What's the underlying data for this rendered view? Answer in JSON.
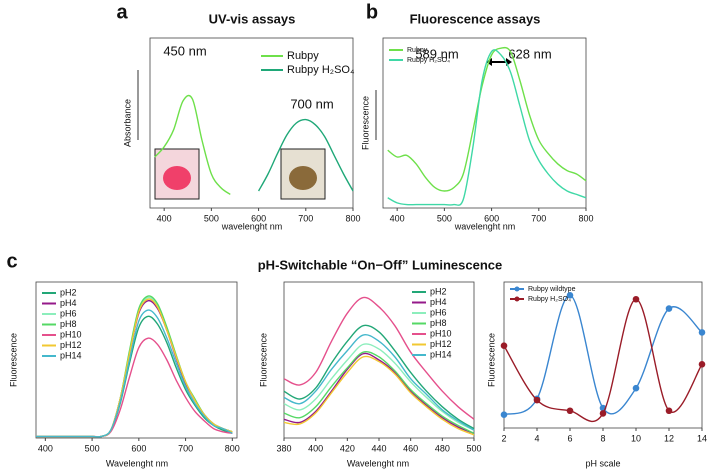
{
  "panels": [
    {
      "label": "a"
    },
    {
      "label": "b"
    },
    {
      "label": "c",
      "title": "pH-Switchable “On−Off” Luminescence"
    }
  ],
  "chart_data": [
    {
      "type": "line",
      "title": "UV-vis assays",
      "x_label": "wavelenght nm",
      "y_label": "Absorbance",
      "xlim": [
        370,
        800
      ],
      "ylim": [
        0,
        1
      ],
      "xticks": [
        400,
        500,
        600,
        700,
        800
      ],
      "legend": "top-right",
      "annotations": [
        "450 nm",
        "700 nm"
      ],
      "x": [
        380,
        400,
        420,
        440,
        460,
        480,
        500,
        520,
        540,
        560,
        580,
        600,
        620,
        640,
        660,
        680,
        700,
        720,
        740,
        760,
        780,
        800
      ],
      "series": [
        {
          "name": "Rubpy",
          "color": "#6ee04a",
          "values": [
            0.3,
            0.36,
            0.46,
            0.63,
            0.64,
            0.4,
            0.2,
            0.12,
            0.08,
            null,
            null,
            null,
            null,
            null,
            null,
            null,
            null,
            null,
            null,
            null,
            null,
            null
          ]
        },
        {
          "name": "Rubpy H₂SO₄",
          "color": "#1fa878",
          "values": [
            null,
            null,
            null,
            null,
            null,
            null,
            null,
            null,
            null,
            null,
            null,
            0.1,
            0.2,
            0.32,
            0.43,
            0.5,
            0.52,
            0.49,
            0.42,
            0.31,
            0.2,
            0.1
          ]
        }
      ]
    },
    {
      "type": "line",
      "title": "Fluorescence assays",
      "x_label": "wavelenght nm",
      "y_label": "Fluorescence",
      "xlim": [
        370,
        800
      ],
      "ylim": [
        0,
        1
      ],
      "xticks": [
        400,
        500,
        600,
        700,
        800
      ],
      "legend": "top-left",
      "annotations": [
        "589 nm",
        "628 nm"
      ],
      "x": [
        380,
        400,
        420,
        440,
        460,
        480,
        500,
        520,
        540,
        560,
        580,
        600,
        620,
        640,
        660,
        680,
        700,
        720,
        740,
        760,
        780,
        800
      ],
      "series": [
        {
          "name": "Rubpy",
          "color": "#6ee04a",
          "values": [
            0.34,
            0.3,
            0.31,
            0.26,
            0.18,
            0.12,
            0.1,
            0.12,
            0.2,
            0.45,
            0.72,
            0.9,
            0.94,
            0.92,
            0.75,
            0.55,
            0.4,
            0.32,
            0.26,
            0.22,
            0.2,
            0.16
          ]
        },
        {
          "name": "Rubpy H₂SO₄",
          "color": "#3fd8a6",
          "values": [
            0.06,
            0.03,
            0.02,
            0.02,
            0.02,
            0.02,
            0.02,
            0.02,
            0.05,
            0.35,
            0.75,
            0.92,
            0.9,
            0.8,
            0.6,
            0.4,
            0.28,
            0.2,
            0.14,
            0.1,
            0.08,
            0.06
          ]
        }
      ]
    },
    {
      "type": "line",
      "x_label": "Wavelenght nm",
      "y_label": "Fluorescence",
      "xlim": [
        380,
        810
      ],
      "ylim": [
        0,
        1
      ],
      "xticks": [
        400,
        500,
        600,
        700,
        800
      ],
      "legend": "top-left",
      "x": [
        380,
        400,
        420,
        440,
        460,
        480,
        500,
        520,
        540,
        560,
        580,
        600,
        620,
        640,
        660,
        680,
        700,
        720,
        740,
        760,
        780,
        800
      ],
      "series": [
        {
          "name": "pH2",
          "color": "#22a777",
          "values": [
            0.01,
            0.01,
            0.01,
            0.01,
            0.01,
            0.01,
            0.01,
            0.01,
            0.05,
            0.22,
            0.48,
            0.71,
            0.78,
            0.73,
            0.61,
            0.45,
            0.31,
            0.21,
            0.13,
            0.08,
            0.05,
            0.03
          ]
        },
        {
          "name": "pH4",
          "color": "#95198a",
          "values": [
            0.01,
            0.01,
            0.01,
            0.01,
            0.01,
            0.01,
            0.01,
            0.01,
            0.05,
            0.25,
            0.54,
            0.8,
            0.88,
            0.83,
            0.69,
            0.51,
            0.35,
            0.24,
            0.15,
            0.09,
            0.06,
            0.04
          ]
        },
        {
          "name": "pH6",
          "color": "#8ceebc",
          "values": [
            0.01,
            0.01,
            0.01,
            0.01,
            0.01,
            0.01,
            0.01,
            0.01,
            0.05,
            0.25,
            0.55,
            0.82,
            0.9,
            0.85,
            0.7,
            0.52,
            0.36,
            0.24,
            0.15,
            0.09,
            0.06,
            0.04
          ]
        },
        {
          "name": "pH8",
          "color": "#55d865",
          "values": [
            0.01,
            0.01,
            0.01,
            0.01,
            0.01,
            0.01,
            0.01,
            0.01,
            0.05,
            0.25,
            0.56,
            0.83,
            0.91,
            0.86,
            0.71,
            0.53,
            0.36,
            0.25,
            0.15,
            0.09,
            0.06,
            0.04
          ]
        },
        {
          "name": "pH10",
          "color": "#e5508c",
          "values": [
            0.01,
            0.01,
            0.01,
            0.01,
            0.01,
            0.01,
            0.01,
            0.01,
            0.04,
            0.18,
            0.39,
            0.58,
            0.64,
            0.6,
            0.5,
            0.37,
            0.26,
            0.17,
            0.11,
            0.06,
            0.04,
            0.03
          ]
        },
        {
          "name": "pH12",
          "color": "#f2c832",
          "values": [
            0.01,
            0.01,
            0.01,
            0.01,
            0.01,
            0.01,
            0.01,
            0.01,
            0.05,
            0.25,
            0.54,
            0.81,
            0.89,
            0.84,
            0.69,
            0.52,
            0.36,
            0.24,
            0.15,
            0.09,
            0.06,
            0.04
          ]
        },
        {
          "name": "pH14",
          "color": "#45b8cc",
          "values": [
            0.01,
            0.01,
            0.01,
            0.01,
            0.01,
            0.01,
            0.01,
            0.01,
            0.05,
            0.23,
            0.5,
            0.75,
            0.82,
            0.77,
            0.64,
            0.48,
            0.33,
            0.22,
            0.14,
            0.08,
            0.06,
            0.03
          ]
        }
      ]
    },
    {
      "type": "line",
      "x_label": "Wavelenght nm",
      "y_label": "Fluorescence",
      "xlim": [
        380,
        500
      ],
      "ylim": [
        0,
        1
      ],
      "xticks": [
        380,
        400,
        420,
        440,
        460,
        480,
        500
      ],
      "legend": "top-right",
      "x": [
        380,
        390,
        400,
        410,
        420,
        430,
        440,
        450,
        460,
        470,
        480,
        490,
        500
      ],
      "series": [
        {
          "name": "pH2",
          "color": "#22a777",
          "values": [
            0.3,
            0.25,
            0.32,
            0.48,
            0.62,
            0.72,
            0.68,
            0.56,
            0.42,
            0.3,
            0.2,
            0.12,
            0.06
          ]
        },
        {
          "name": "pH4",
          "color": "#95198a",
          "values": [
            0.12,
            0.1,
            0.17,
            0.3,
            0.44,
            0.54,
            0.5,
            0.42,
            0.3,
            0.21,
            0.13,
            0.07,
            0.03
          ]
        },
        {
          "name": "pH6",
          "color": "#8ceebc",
          "values": [
            0.22,
            0.18,
            0.25,
            0.38,
            0.5,
            0.6,
            0.57,
            0.48,
            0.36,
            0.26,
            0.17,
            0.1,
            0.05
          ]
        },
        {
          "name": "pH8",
          "color": "#55d865",
          "values": [
            0.16,
            0.13,
            0.2,
            0.33,
            0.45,
            0.55,
            0.52,
            0.43,
            0.31,
            0.22,
            0.14,
            0.08,
            0.03
          ]
        },
        {
          "name": "pH10",
          "color": "#e5508c",
          "values": [
            0.38,
            0.34,
            0.42,
            0.62,
            0.8,
            0.9,
            0.84,
            0.72,
            0.55,
            0.42,
            0.3,
            0.2,
            0.12
          ]
        },
        {
          "name": "pH12",
          "color": "#f2c832",
          "values": [
            0.1,
            0.09,
            0.16,
            0.29,
            0.42,
            0.52,
            0.49,
            0.41,
            0.29,
            0.2,
            0.12,
            0.06,
            0.02
          ]
        },
        {
          "name": "pH14",
          "color": "#45b8cc",
          "values": [
            0.26,
            0.22,
            0.3,
            0.44,
            0.56,
            0.66,
            0.62,
            0.52,
            0.38,
            0.28,
            0.18,
            0.11,
            0.05
          ]
        }
      ]
    },
    {
      "type": "line",
      "markers": true,
      "x_label": "pH scale",
      "y_label": "Fluorescence",
      "xlim": [
        2,
        14
      ],
      "ylim": [
        0,
        1.1
      ],
      "xticks": [
        2,
        4,
        6,
        8,
        10,
        12,
        14
      ],
      "legend": "top-left",
      "x": [
        2,
        4,
        6,
        8,
        10,
        12,
        14
      ],
      "series": [
        {
          "name": "Rubpy wildtype",
          "color": "#3a86d0",
          "values": [
            0.1,
            0.22,
            1.0,
            0.15,
            0.3,
            0.9,
            0.72
          ]
        },
        {
          "name": "Rubpy H₂SO₄",
          "color": "#9a1c28",
          "values": [
            0.62,
            0.21,
            0.13,
            0.11,
            0.97,
            0.13,
            0.48
          ]
        }
      ]
    }
  ]
}
